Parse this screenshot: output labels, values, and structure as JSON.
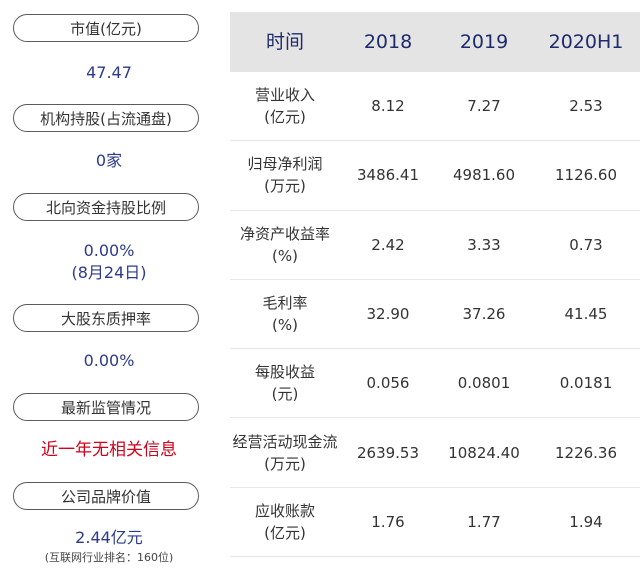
{
  "left": {
    "items": [
      {
        "label": "市值(亿元)",
        "value": "47.47",
        "value_style": "blue"
      },
      {
        "label": "机构持股(占流通盘)",
        "value": "0家",
        "value_style": "blue"
      },
      {
        "label": "北向资金持股比例",
        "value": "0.00%",
        "value2": "(8月24日)",
        "value_style": "blue"
      },
      {
        "label": "大股东质押率",
        "value": "0.00%",
        "value_style": "blue"
      },
      {
        "label": "最新监管情况",
        "value": "近一年无相关信息",
        "value_style": "red"
      },
      {
        "label": "公司品牌价值",
        "value": "2.44亿元",
        "note": "(互联网行业排名：160位)",
        "value_style": "blue"
      }
    ]
  },
  "table": {
    "headers": [
      "时间",
      "2018",
      "2019",
      "2020H1"
    ],
    "rows": [
      {
        "label1": "营业收入",
        "label2": "(亿元)",
        "values": [
          "8.12",
          "7.27",
          "2.53"
        ]
      },
      {
        "label1": "归母净利润",
        "label2": "(万元)",
        "values": [
          "3486.41",
          "4981.60",
          "1126.60"
        ]
      },
      {
        "label1": "净资产收益率",
        "label2": "(%)",
        "values": [
          "2.42",
          "3.33",
          "0.73"
        ]
      },
      {
        "label1": "毛利率",
        "label2": "(%)",
        "values": [
          "32.90",
          "37.26",
          "41.45"
        ]
      },
      {
        "label1": "每股收益",
        "label2": "(元)",
        "values": [
          "0.056",
          "0.0801",
          "0.0181"
        ]
      },
      {
        "label1": "经营活动现金流",
        "label2": "(万元)",
        "values": [
          "2639.53",
          "10824.40",
          "1226.36"
        ]
      },
      {
        "label1": "应收账款",
        "label2": "(亿元)",
        "values": [
          "1.76",
          "1.77",
          "1.94"
        ]
      }
    ]
  },
  "colors": {
    "value_blue": "#2c3a8c",
    "alert_red": "#d0021b",
    "header_bg": "#e4e4e4"
  }
}
